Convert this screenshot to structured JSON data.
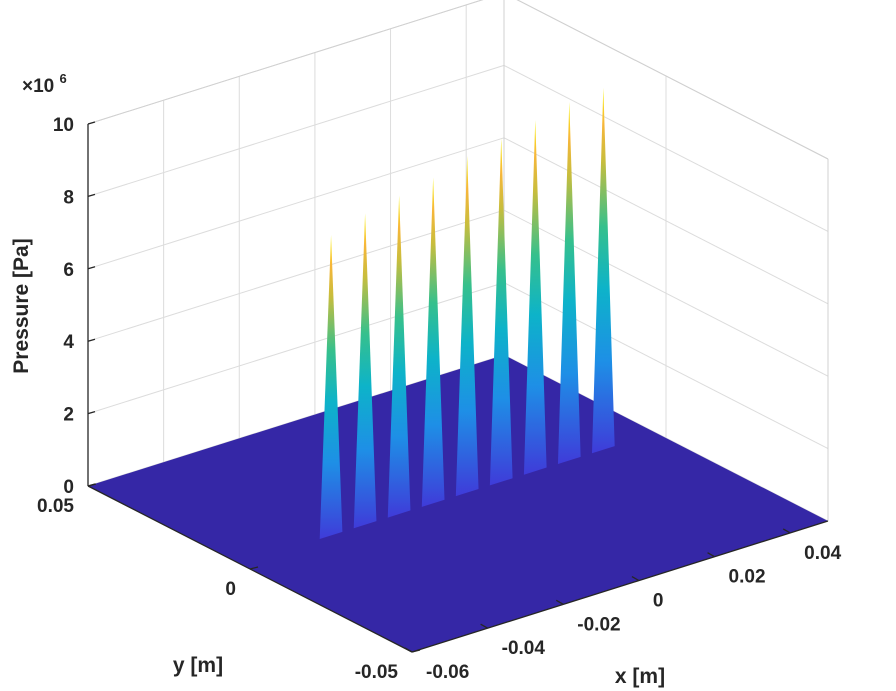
{
  "chart_data": {
    "type": "surface",
    "xlabel": "x [m]",
    "ylabel": "y [m]",
    "zlabel": "Pressure [Pa]",
    "z_exponent_label": {
      "base": "×10",
      "power": "6"
    },
    "xlim": [
      -0.06,
      0.05
    ],
    "ylim": [
      -0.05,
      0.05
    ],
    "zlim": [
      0,
      10
    ],
    "z_scale": 1000000,
    "x_ticks": [
      "-0.06",
      "-0.04",
      "-0.02",
      "0",
      "0.02",
      "0.04"
    ],
    "y_ticks": [
      "-0.05",
      "0",
      "0.05"
    ],
    "z_ticks": [
      "0",
      "2",
      "4",
      "6",
      "8",
      "10"
    ],
    "grid": true,
    "colormap": "parula",
    "peaks": [
      {
        "x": -0.036,
        "y": 0.003,
        "z": 8.3
      },
      {
        "x": -0.027,
        "y": 0.003,
        "z": 8.6
      },
      {
        "x": -0.018,
        "y": 0.003,
        "z": 8.8
      },
      {
        "x": -0.009,
        "y": 0.003,
        "z": 9.0
      },
      {
        "x": 0.0,
        "y": 0.003,
        "z": 9.3
      },
      {
        "x": 0.009,
        "y": 0.003,
        "z": 9.5
      },
      {
        "x": 0.018,
        "y": 0.003,
        "z": 9.7
      },
      {
        "x": 0.027,
        "y": 0.003,
        "z": 9.9
      },
      {
        "x": 0.036,
        "y": 0.003,
        "z": 10.0
      }
    ],
    "peak_half_width_m": 0.003,
    "floor_color": "#3527a6"
  }
}
